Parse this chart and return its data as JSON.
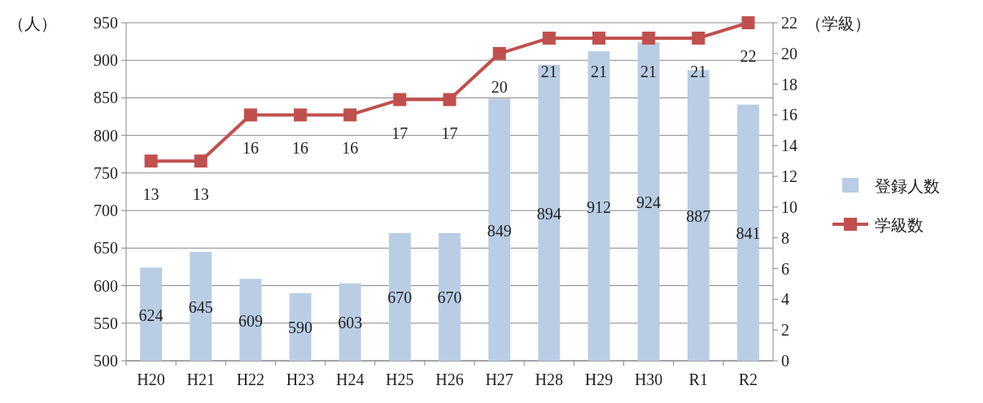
{
  "chart_data": {
    "type": "bar",
    "categories": [
      "H20",
      "H21",
      "H22",
      "H23",
      "H24",
      "H25",
      "H26",
      "H27",
      "H28",
      "H29",
      "H30",
      "R1",
      "R2"
    ],
    "ylabel": "（人）",
    "y2label": "（学級）",
    "ylim": [
      500,
      950
    ],
    "yticks": [
      500,
      550,
      600,
      650,
      700,
      750,
      800,
      850,
      900,
      950
    ],
    "y2lim": [
      0,
      22
    ],
    "y2ticks": [
      0,
      2,
      4,
      6,
      8,
      10,
      12,
      14,
      16,
      18,
      20,
      22
    ],
    "grid": "y",
    "legend": "right",
    "data_labels": true,
    "series": [
      {
        "name": "登録人数",
        "color": "#b9cde5",
        "values": [
          624,
          645,
          609,
          590,
          603,
          670,
          670,
          849,
          894,
          912,
          924,
          887,
          841
        ]
      },
      {
        "name": "学級数",
        "type": "line",
        "axis": "y2",
        "color": "#c0504d",
        "marker": "square",
        "values": [
          13,
          13,
          16,
          16,
          16,
          17,
          17,
          20,
          21,
          21,
          21,
          21,
          22
        ]
      }
    ]
  }
}
